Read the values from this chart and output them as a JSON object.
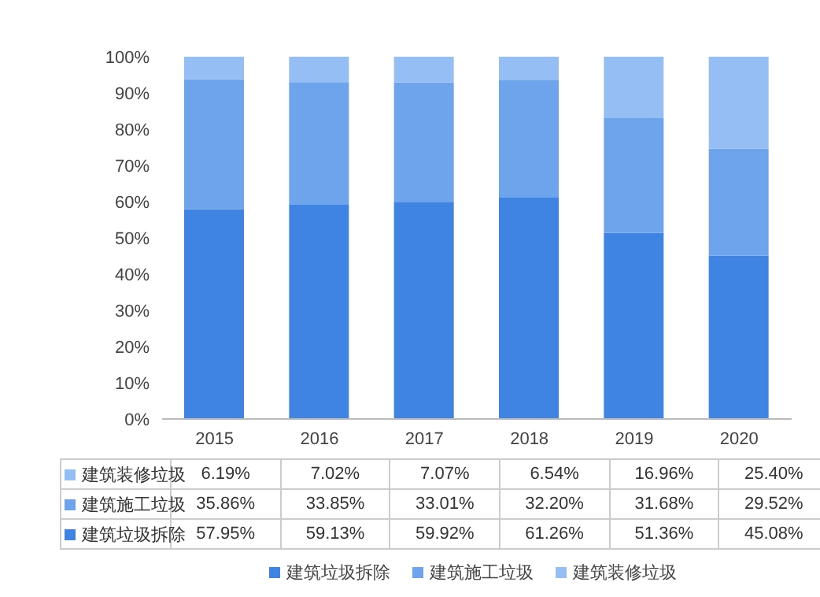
{
  "chart_data": {
    "type": "bar",
    "stacked": true,
    "categories": [
      "2015",
      "2016",
      "2017",
      "2018",
      "2019",
      "2020"
    ],
    "series": [
      {
        "name": "建筑垃圾拆除",
        "color": "#3f83e3",
        "values": [
          57.95,
          59.13,
          59.92,
          61.26,
          51.36,
          45.08
        ],
        "value_labels": [
          "57.95%",
          "59.13%",
          "59.92%",
          "61.26%",
          "51.36%",
          "45.08%"
        ]
      },
      {
        "name": "建筑施工垃圾",
        "color": "#6ea4ec",
        "values": [
          35.86,
          33.85,
          33.01,
          32.2,
          31.68,
          29.52
        ],
        "value_labels": [
          "35.86%",
          "33.85%",
          "33.01%",
          "32.20%",
          "31.68%",
          "29.52%"
        ]
      },
      {
        "name": "建筑装修垃圾",
        "color": "#95bff4",
        "values": [
          6.19,
          7.02,
          7.07,
          6.54,
          16.96,
          25.4
        ],
        "value_labels": [
          "6.19%",
          "7.02%",
          "7.07%",
          "6.54%",
          "16.96%",
          "25.40%"
        ]
      }
    ],
    "ylim": [
      0,
      100
    ],
    "yticks": [
      {
        "value": 0,
        "label": "0%"
      },
      {
        "value": 10,
        "label": "10%"
      },
      {
        "value": 20,
        "label": "20%"
      },
      {
        "value": 30,
        "label": "30%"
      },
      {
        "value": 40,
        "label": "40%"
      },
      {
        "value": 50,
        "label": "50%"
      },
      {
        "value": 60,
        "label": "60%"
      },
      {
        "value": 70,
        "label": "70%"
      },
      {
        "value": 80,
        "label": "80%"
      },
      {
        "value": 90,
        "label": "90%"
      },
      {
        "value": 100,
        "label": "100%"
      }
    ],
    "legend": "bottom"
  }
}
